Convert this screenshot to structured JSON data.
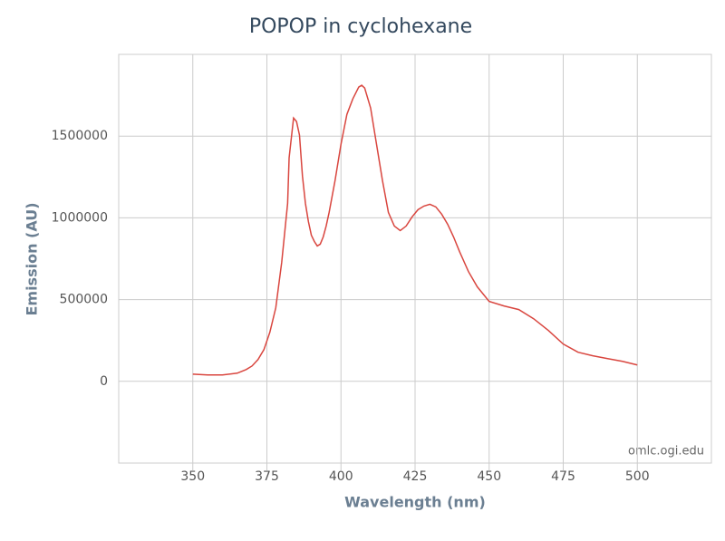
{
  "chart_data": {
    "type": "line",
    "title": "POPOP in cyclohexane",
    "x_label": "Wavelength (nm)",
    "y_label": "Emission (AU)",
    "credit": "omlc.ogi.edu",
    "x": [
      350,
      355,
      360,
      365,
      368,
      370,
      372,
      374,
      376,
      378,
      380,
      382,
      382.5,
      384,
      385,
      386,
      387,
      388,
      389,
      390,
      391,
      392,
      393,
      394,
      395,
      396,
      398,
      400,
      402,
      404,
      406,
      407,
      408,
      410,
      412,
      414,
      416,
      418,
      420,
      422,
      424,
      426,
      428,
      430,
      432,
      434,
      436,
      438,
      440,
      443,
      446,
      450,
      455,
      460,
      465,
      470,
      475,
      480,
      485,
      490,
      495,
      500
    ],
    "series": [
      {
        "name": "POPOP",
        "color": "#d9463f",
        "values": [
          44000,
          39000,
          39000,
          50000,
          72000,
          94000,
          133000,
          194000,
          300000,
          450000,
          728000,
          1089000,
          1367000,
          1611000,
          1589000,
          1506000,
          1256000,
          1089000,
          978000,
          894000,
          856000,
          828000,
          839000,
          883000,
          950000,
          1033000,
          1228000,
          1450000,
          1633000,
          1728000,
          1800000,
          1811000,
          1794000,
          1672000,
          1450000,
          1228000,
          1033000,
          950000,
          922000,
          950000,
          1006000,
          1050000,
          1072000,
          1083000,
          1067000,
          1022000,
          961000,
          883000,
          794000,
          672000,
          578000,
          489000,
          461000,
          439000,
          383000,
          311000,
          228000,
          178000,
          156000,
          139000,
          122000,
          100000
        ]
      }
    ],
    "xlim": [
      325,
      525
    ],
    "ylim": [
      -500000,
      2000000
    ],
    "xticks": [
      350,
      375,
      400,
      425,
      450,
      475,
      500
    ],
    "yticks": [
      0,
      500000,
      1000000,
      1500000
    ],
    "grid": true
  }
}
